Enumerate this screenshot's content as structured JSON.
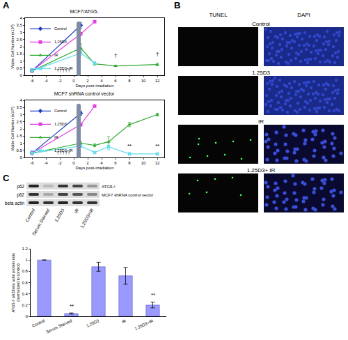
{
  "panels": [
    "A",
    "B",
    "C"
  ],
  "chart_data": [
    {
      "type": "line",
      "title": "MCF7/ATG5-",
      "x_label": "Days post-irradiation",
      "y_label": "Viable Cell Number (x10⁶)",
      "xlim": [
        -7,
        13
      ],
      "xticks": [
        -6,
        -4,
        -2,
        0,
        2,
        4,
        6,
        8,
        10,
        12
      ],
      "ylim": [
        0,
        4
      ],
      "yticks": [
        0,
        0.5,
        1,
        1.5,
        2,
        2.5,
        3,
        3.5,
        4
      ],
      "legend": "top-left",
      "series": [
        {
          "name": "Control",
          "color": "#1f3fbf",
          "marker": "diamond",
          "x": [
            -6,
            1
          ],
          "values": [
            0.3,
            3.5
          ],
          "errors": [
            0.03,
            0.2
          ]
        },
        {
          "name": "1,25D3",
          "color": "#e040e0",
          "marker": "square",
          "x": [
            -6,
            1,
            3
          ],
          "values": [
            0.3,
            2.9,
            3.75
          ],
          "errors": [
            0.03,
            0.1,
            0.05
          ]
        },
        {
          "name": "IR",
          "color": "#33aa33",
          "marker": "triangle-up",
          "x": [
            -6,
            1,
            3,
            6,
            12
          ],
          "values": [
            0.3,
            1.9,
            0.8,
            0.65,
            0.75
          ],
          "errors": [
            0.03,
            0.3,
            0.1,
            0.05,
            0.08
          ]
        },
        {
          "name": "1,25D3+IR",
          "color": "#66dcee",
          "marker": "x",
          "x": [
            -6,
            1,
            3
          ],
          "values": [
            0.3,
            1.55,
            0.85
          ],
          "errors": [
            0.03,
            0.2,
            0.1
          ]
        }
      ],
      "annotations": [
        {
          "x": -1.5,
          "y": 0,
          "text": "↑↑↑↑↑"
        },
        {
          "x": 6,
          "y": 1.05,
          "text": "†"
        },
        {
          "x": 12,
          "y": 1.15,
          "text": "†"
        }
      ]
    },
    {
      "type": "line",
      "title": "MCF7 shRNA control vector",
      "x_label": "Days post-irradiation",
      "y_label": "Viable Cell Number (x10⁶)",
      "xlim": [
        -7,
        13
      ],
      "xticks": [
        -6,
        -4,
        -2,
        0,
        2,
        4,
        6,
        8,
        10,
        12
      ],
      "ylim": [
        0,
        4
      ],
      "yticks": [
        0,
        0.5,
        1,
        1.5,
        2,
        2.5,
        3,
        3.5,
        4
      ],
      "legend": "top-left",
      "series": [
        {
          "name": "Control",
          "color": "#1f3fbf",
          "marker": "diamond",
          "x": [
            -6,
            1
          ],
          "values": [
            0.3,
            3.1
          ],
          "errors": [
            0.03,
            0.15
          ]
        },
        {
          "name": "1,25D3",
          "color": "#e040e0",
          "marker": "square",
          "x": [
            -6,
            1,
            3
          ],
          "values": [
            0.3,
            2.3,
            3.6
          ],
          "errors": [
            0.03,
            0.1,
            0.05
          ]
        },
        {
          "name": "IR",
          "color": "#33aa33",
          "marker": "triangle-up",
          "x": [
            -6,
            1,
            3,
            5,
            8,
            12
          ],
          "values": [
            0.3,
            1.0,
            0.85,
            1.1,
            2.3,
            3.0
          ],
          "errors": [
            0.03,
            0.1,
            0.1,
            0.35,
            0.15,
            0.1
          ]
        },
        {
          "name": "1,25D3+IR",
          "color": "#66dcee",
          "marker": "x",
          "x": [
            -6,
            1,
            3,
            5,
            8,
            12
          ],
          "values": [
            0.3,
            0.8,
            0.35,
            0.75,
            0.25,
            0.25
          ],
          "errors": [
            0.03,
            0.1,
            0.05,
            0.2,
            0.03,
            0.03
          ]
        }
      ],
      "annotations": [
        {
          "x": -1.5,
          "y": 0,
          "text": "↑↑↑↑↑"
        },
        {
          "x": 8,
          "y": 0.5,
          "text": "**"
        },
        {
          "x": 12,
          "y": 0.5,
          "text": "**"
        }
      ]
    },
    {
      "type": "bar",
      "categories": [
        "Control",
        "Serum Starved",
        "1,25D3",
        "IR",
        "1,25D3+IR"
      ],
      "values": [
        1,
        0.05,
        0.88,
        0.72,
        0.2
      ],
      "errors": [
        0,
        0.01,
        0.08,
        0.15,
        0.05
      ],
      "color": "#9999ff",
      "ylim": [
        0,
        1.2
      ],
      "yticks": [
        0,
        0.2,
        0.4,
        0.6,
        0.8,
        1,
        1.2
      ],
      "y_label": [
        "ATG5-/- p62/beta actin protein ratio",
        "(normalized to control)"
      ],
      "annotations": [
        {
          "x": "Serum Starved",
          "y": 0.1,
          "text": "**"
        },
        {
          "x": "1,25D3+IR",
          "y": 0.3,
          "text": "**"
        }
      ]
    }
  ],
  "panel_b": {
    "columns": [
      "TUNEL",
      "DAPI"
    ],
    "rows": [
      "Control",
      "1.25D3",
      "IR",
      "1.25D3+ IR"
    ]
  },
  "panel_c_blot": {
    "rows": [
      "p62",
      "p62",
      "beta actin"
    ],
    "row_groups": [
      "ATG5-/-",
      "MCF7 shRNA control vector"
    ],
    "lanes": [
      "Control",
      "Serum Starved",
      "1,25D3",
      "IR",
      "1,25D3+IR"
    ]
  }
}
